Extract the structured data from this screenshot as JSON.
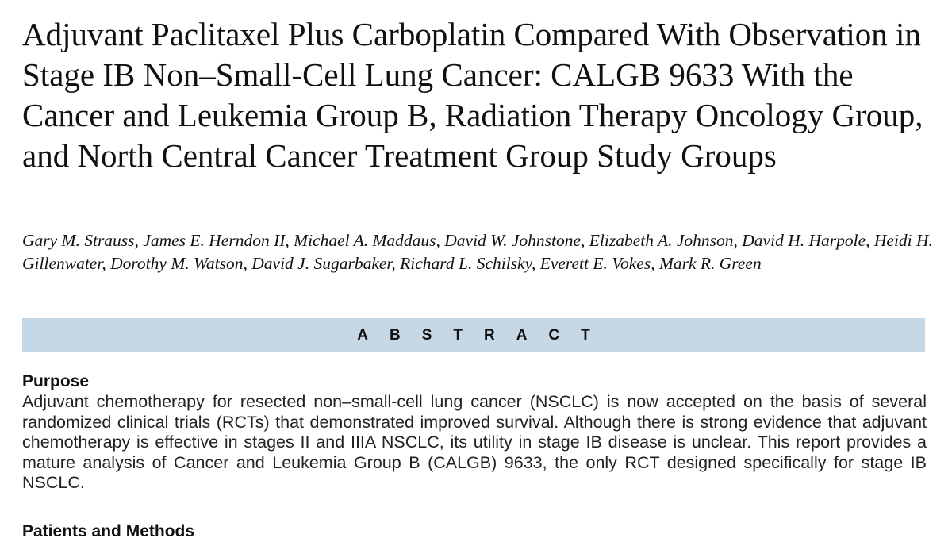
{
  "paper": {
    "title": "Adjuvant Paclitaxel Plus Carboplatin Compared With Observation in Stage IB Non–Small-Cell Lung Cancer: CALGB 9633 With the Cancer and Leukemia Group B, Radiation Therapy Oncology Group, and North Central Cancer Treatment Group Study Groups",
    "authors": "Gary M. Strauss, James E. Herndon II, Michael A. Maddaus, David W. Johnstone, Elizabeth A. Johnson, David H. Harpole, Heidi H. Gillenwater, Dorothy M. Watson, David J. Sugarbaker, Richard L. Schilsky, Everett E. Vokes, Mark R. Green"
  },
  "abstract": {
    "label": "ABSTRACT",
    "purpose": {
      "heading": "Purpose",
      "body": "Adjuvant chemotherapy for resected non–small-cell lung cancer (NSCLC) is now accepted on the basis of several randomized clinical trials (RCTs) that demonstrated improved survival. Although there is strong evidence that adjuvant chemotherapy is effective in stages II and IIIA NSCLC, its utility in stage IB disease is unclear. This report provides a mature analysis of Cancer and Leukemia Group B (CALGB) 9633, the only RCT designed specifically for stage IB NSCLC."
    },
    "patients_methods": {
      "heading": "Patients and Methods"
    }
  },
  "colors": {
    "abstract_bar": "#c6d7e6",
    "text": "#111111"
  }
}
